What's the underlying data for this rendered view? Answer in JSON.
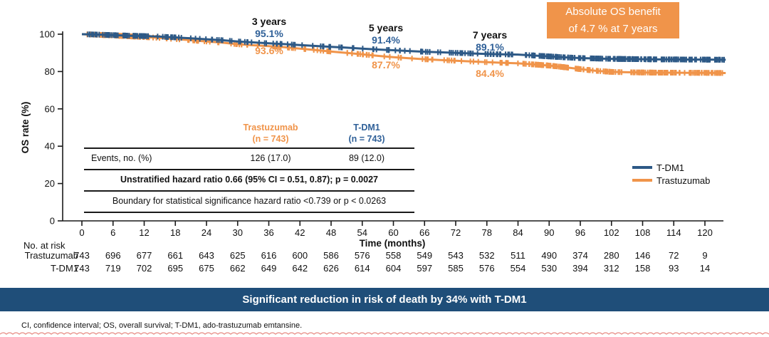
{
  "annotation_box": {
    "line1": "Absolute OS benefit",
    "line2": "of 4.7 % at 7 years"
  },
  "chart_data": {
    "type": "line",
    "subtype": "kaplan-meier",
    "title": "",
    "xlabel": "Time (months)",
    "ylabel": "OS rate (%)",
    "xlim": [
      0,
      124
    ],
    "ylim": [
      0,
      100
    ],
    "x_ticks": [
      0,
      6,
      12,
      18,
      24,
      30,
      36,
      42,
      48,
      54,
      60,
      66,
      72,
      78,
      84,
      90,
      96,
      102,
      108,
      114,
      120
    ],
    "y_ticks": [
      0,
      20,
      40,
      60,
      80,
      100
    ],
    "grid": false,
    "legend_position": "right",
    "legend": [
      {
        "label": "T-DM1",
        "color": "#2d5986"
      },
      {
        "label": "Trastuzumab",
        "color": "#f0944a"
      }
    ],
    "series": [
      {
        "name": "T-DM1",
        "color": "#2d5986",
        "points": [
          [
            0,
            100
          ],
          [
            3,
            99.8
          ],
          [
            6,
            99.5
          ],
          [
            9,
            99.2
          ],
          [
            12,
            99.0
          ],
          [
            15,
            98.7
          ],
          [
            18,
            98.3
          ],
          [
            21,
            97.8
          ],
          [
            24,
            97.3
          ],
          [
            27,
            96.8
          ],
          [
            30,
            96.1
          ],
          [
            33,
            95.6
          ],
          [
            36,
            95.1
          ],
          [
            39,
            94.7
          ],
          [
            42,
            94.2
          ],
          [
            45,
            93.7
          ],
          [
            48,
            93.2
          ],
          [
            51,
            92.8
          ],
          [
            54,
            92.3
          ],
          [
            57,
            91.8
          ],
          [
            60,
            91.4
          ],
          [
            63,
            91.0
          ],
          [
            66,
            90.6
          ],
          [
            69,
            90.3
          ],
          [
            72,
            90.0
          ],
          [
            75,
            89.7
          ],
          [
            78,
            89.4
          ],
          [
            81,
            89.2
          ],
          [
            84,
            89.1
          ],
          [
            87,
            88.6
          ],
          [
            90,
            88.1
          ],
          [
            93,
            87.6
          ],
          [
            96,
            87.2
          ],
          [
            99,
            87.0
          ],
          [
            102,
            86.8
          ],
          [
            105,
            86.7
          ],
          [
            108,
            86.6
          ],
          [
            111,
            86.5
          ],
          [
            114,
            86.5
          ],
          [
            117,
            86.4
          ],
          [
            120,
            86.4
          ],
          [
            124,
            86.3
          ]
        ]
      },
      {
        "name": "Trastuzumab",
        "color": "#f0944a",
        "points": [
          [
            0,
            100
          ],
          [
            3,
            99.7
          ],
          [
            6,
            99.3
          ],
          [
            9,
            98.9
          ],
          [
            12,
            98.5
          ],
          [
            15,
            98.0
          ],
          [
            18,
            97.4
          ],
          [
            21,
            96.8
          ],
          [
            24,
            96.1
          ],
          [
            27,
            95.5
          ],
          [
            30,
            94.6
          ],
          [
            33,
            94.1
          ],
          [
            36,
            93.6
          ],
          [
            39,
            93.0
          ],
          [
            42,
            92.3
          ],
          [
            45,
            91.5
          ],
          [
            48,
            90.7
          ],
          [
            51,
            90.0
          ],
          [
            54,
            89.2
          ],
          [
            57,
            88.4
          ],
          [
            60,
            87.7
          ],
          [
            63,
            87.1
          ],
          [
            66,
            86.6
          ],
          [
            69,
            86.2
          ],
          [
            72,
            85.8
          ],
          [
            75,
            85.4
          ],
          [
            78,
            85.0
          ],
          [
            81,
            84.7
          ],
          [
            84,
            84.4
          ],
          [
            87,
            83.8
          ],
          [
            90,
            83.2
          ],
          [
            93,
            82.3
          ],
          [
            96,
            81.3
          ],
          [
            99,
            80.4
          ],
          [
            102,
            79.8
          ],
          [
            105,
            79.6
          ],
          [
            108,
            79.5
          ],
          [
            111,
            79.4
          ],
          [
            114,
            79.4
          ],
          [
            117,
            79.3
          ],
          [
            120,
            79.3
          ],
          [
            124,
            79.2
          ]
        ]
      }
    ],
    "timepoint_annotations": [
      {
        "label": "3 years",
        "tdm1": "95.1%",
        "trastuzumab": "93.6%"
      },
      {
        "label": "5 years",
        "tdm1": "91.4%",
        "trastuzumab": "87.7%"
      },
      {
        "label": "7 years",
        "tdm1": "89.1%",
        "trastuzumab": "84.4%"
      }
    ]
  },
  "inset_table": {
    "col_headers": [
      {
        "line1": "Trastuzumab",
        "line2": "(n = 743)"
      },
      {
        "line1": "T-DM1",
        "line2": "(n = 743)"
      }
    ],
    "rows": [
      {
        "label": "Events, no. (%)",
        "trastuzumab": "126 (17.0)",
        "tdm1": "89 (12.0)"
      }
    ],
    "hazard_ratio_row": "Unstratified hazard ratio 0.66 (95% CI = 0.51, 0.87); p = 0.0027",
    "boundary_row": "Boundary for statistical significance hazard ratio <0.739 or p < 0.0263"
  },
  "risk_table": {
    "title": "No. at risk",
    "rows": [
      {
        "label": "Trastuzumab",
        "values": [
          743,
          696,
          677,
          661,
          643,
          625,
          616,
          600,
          586,
          576,
          558,
          549,
          543,
          532,
          511,
          490,
          374,
          280,
          146,
          72,
          9
        ]
      },
      {
        "label": "T-DM1",
        "values": [
          743,
          719,
          702,
          695,
          675,
          662,
          649,
          642,
          626,
          614,
          604,
          597,
          585,
          576,
          554,
          530,
          394,
          312,
          158,
          93,
          14
        ]
      }
    ]
  },
  "banner": {
    "text": "Significant reduction in risk of death by 34% with T-DM1",
    "background": "#1f4e79"
  },
  "footnote": "CI, confidence interval; OS, overall survival; T-DM1, ado-trastuzumab emtansine.",
  "colors": {
    "tdm1_curve": "#2d5986",
    "trastuzumab_curve": "#f0944a",
    "tdm1_text": "#2f6098",
    "trastuzumab_text": "#f0944a",
    "banner_bg": "#1f4e79",
    "callout_bg": "#f0944a",
    "axis": "#1a1a1a",
    "wavy_line": "#e89089"
  }
}
